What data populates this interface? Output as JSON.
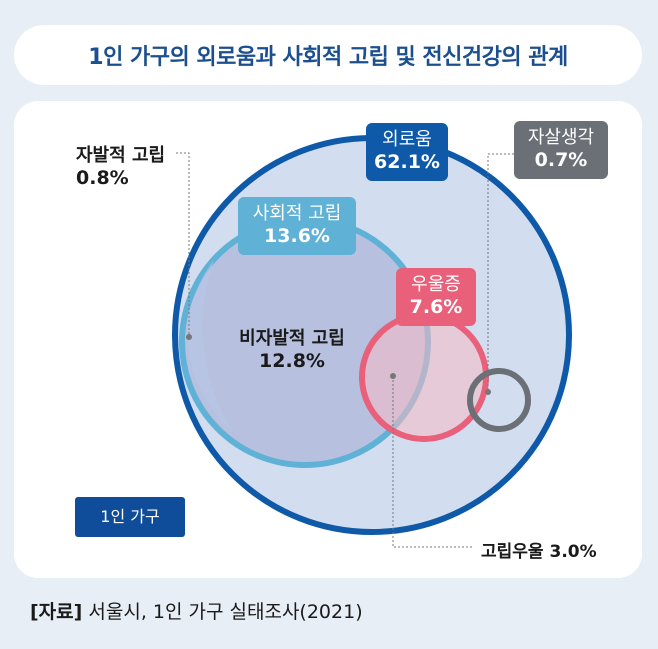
{
  "title": "1인 가구의 외로움과 사회적 고립 및 전신건강의 관계",
  "legend": {
    "household_label": "1인 가구"
  },
  "sets": {
    "loneliness": {
      "name": "외로움",
      "value": "62.1%"
    },
    "social_isolation": {
      "name": "사회적 고립",
      "value": "13.6%"
    },
    "depression": {
      "name": "우울증",
      "value": "7.6%"
    },
    "suicidal_thoughts": {
      "name": "자살생각",
      "value": "0.7%"
    },
    "voluntary_isolation": {
      "name": "자발적 고립",
      "value": "0.8%"
    },
    "involuntary_isolation": {
      "name": "비자발적 고립",
      "value": "12.8%"
    },
    "isolation_depression": {
      "name": "고립우울",
      "value": "3.0%"
    }
  },
  "colors": {
    "loneliness": "#0f5aa8",
    "social_isolation": "#5fb1d6",
    "depression": "#e8607a",
    "suicidal_thoughts": "#6b6f76",
    "legend_box": "#0f4d9b",
    "title": "#1b4f8f"
  },
  "source": {
    "prefix": "[자료]",
    "text": "서울시, 1인 가구 실태조사(2021)"
  }
}
